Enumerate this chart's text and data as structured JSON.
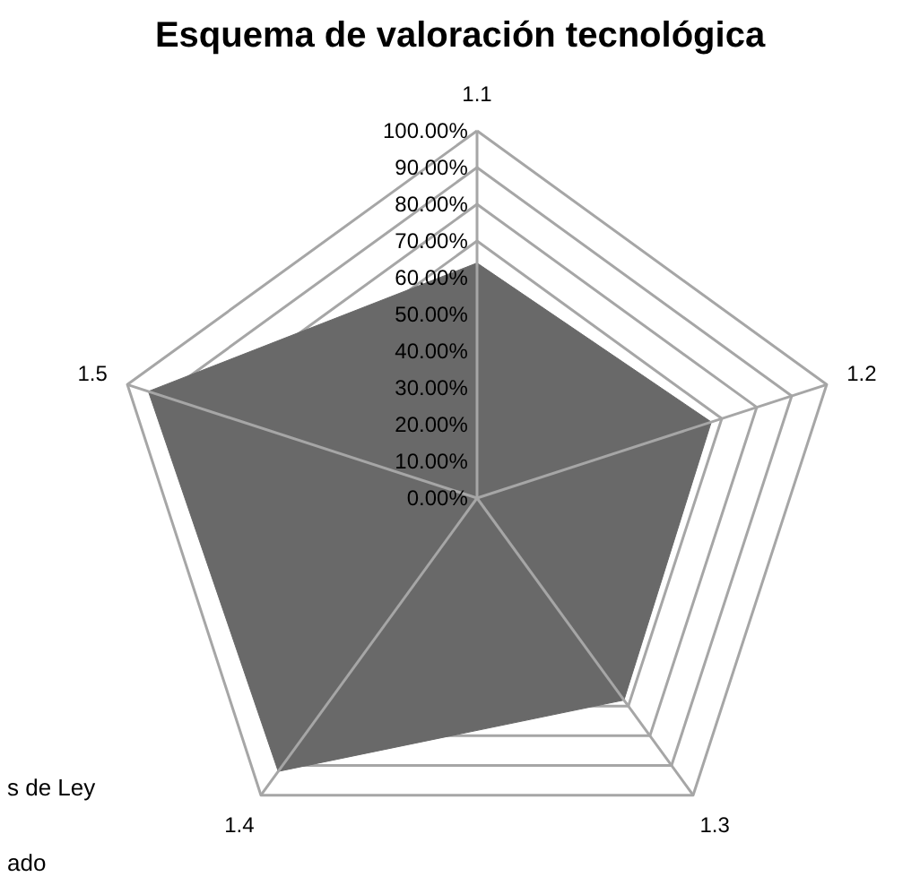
{
  "chart_data": {
    "type": "radar",
    "title": "Esquema de valoración tecnológica",
    "categories": [
      "1.1",
      "1.2",
      "1.3",
      "1.4",
      "1.5"
    ],
    "series": [
      {
        "color": "#696969",
        "values": [
          64,
          67,
          68,
          92,
          94
        ]
      }
    ],
    "ylim": [
      0,
      100
    ],
    "yticks": [
      {
        "value": 0,
        "label": "0.00%"
      },
      {
        "value": 10,
        "label": "10.00%"
      },
      {
        "value": 20,
        "label": "20.00%"
      },
      {
        "value": 30,
        "label": "30.00%"
      },
      {
        "value": 40,
        "label": "40.00%"
      },
      {
        "value": 50,
        "label": "50.00%"
      },
      {
        "value": 60,
        "label": "60.00%"
      },
      {
        "value": 70,
        "label": "70.00%"
      },
      {
        "value": 80,
        "label": "80.00%"
      },
      {
        "value": 90,
        "label": "90.00%"
      },
      {
        "value": 100,
        "label": "100.00%"
      }
    ],
    "grid": true,
    "annotations": [
      "s de Ley",
      "ado"
    ]
  }
}
